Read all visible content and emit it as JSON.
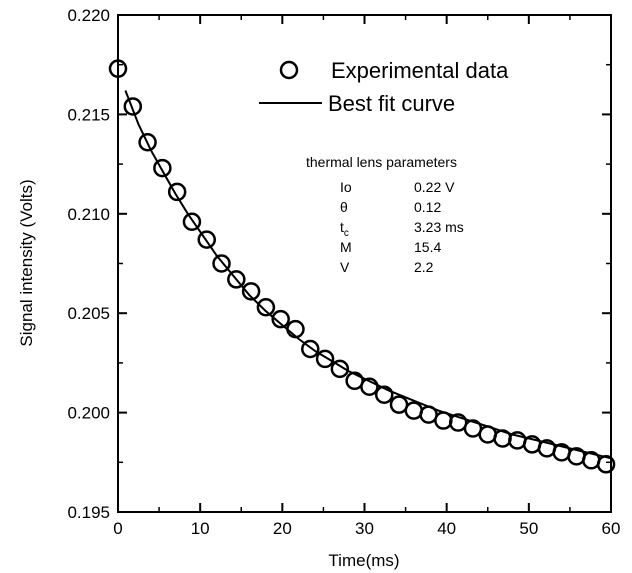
{
  "chart_data": {
    "type": "scatter",
    "xlabel": "Time(ms)",
    "ylabel": "Signal intensity (Volts)",
    "xlim": [
      0,
      60
    ],
    "ylim": [
      0.195,
      0.22
    ],
    "xticks": [
      "0",
      "10",
      "20",
      "30",
      "40",
      "50",
      "60"
    ],
    "yticks": [
      "0.195",
      "0.200",
      "0.205",
      "0.210",
      "0.215",
      "0.220"
    ],
    "grid": false,
    "legend_position": "top-right",
    "series": [
      {
        "name": "Experimental data",
        "kind": "markers",
        "marker": "open-circle",
        "x": [
          0.0,
          1.8,
          3.6,
          5.4,
          7.2,
          9.0,
          10.8,
          12.6,
          14.4,
          16.2,
          18.0,
          19.8,
          21.6,
          23.4,
          25.2,
          27.0,
          28.8,
          30.6,
          32.4,
          34.2,
          36.0,
          37.8,
          39.6,
          41.4,
          43.2,
          45.0,
          46.8,
          48.6,
          50.4,
          52.2,
          54.0,
          55.8,
          57.6,
          59.4
        ],
        "y": [
          0.2173,
          0.2154,
          0.2136,
          0.2123,
          0.2111,
          0.2096,
          0.2087,
          0.2075,
          0.2067,
          0.2061,
          0.2053,
          0.2047,
          0.2042,
          0.2032,
          0.2027,
          0.2022,
          0.2016,
          0.2013,
          0.2009,
          0.2004,
          0.2001,
          0.1999,
          0.1996,
          0.1995,
          0.1992,
          0.1989,
          0.1987,
          0.1986,
          0.1984,
          0.1982,
          0.198,
          0.1978,
          0.1976,
          0.1974
        ]
      },
      {
        "name": "Best fit curve",
        "kind": "line",
        "x": [
          0.9,
          2.5,
          4.0,
          5.5,
          7.0,
          8.5,
          10.0,
          12.0,
          14.0,
          16.0,
          18.0,
          20.0,
          22.0,
          24.0,
          26.0,
          28.0,
          30.0,
          33.0,
          36.0,
          39.0,
          42.0,
          45.0,
          48.0,
          51.0,
          54.0,
          57.0,
          60.0
        ],
        "y": [
          0.2162,
          0.2145,
          0.2132,
          0.2121,
          0.211,
          0.21,
          0.2091,
          0.2079,
          0.2069,
          0.2059,
          0.2051,
          0.2044,
          0.2037,
          0.2031,
          0.2026,
          0.2021,
          0.2017,
          0.2011,
          0.2006,
          0.2001,
          0.1997,
          0.1993,
          0.1989,
          0.1986,
          0.1983,
          0.198,
          0.1977
        ]
      }
    ],
    "parameters": {
      "title": "thermal lens parameters",
      "rows": [
        {
          "symbol": "Io",
          "symbol_sub": "",
          "value": "0.22 V"
        },
        {
          "symbol": "θ",
          "symbol_sub": "",
          "value": "0.12"
        },
        {
          "symbol": "t",
          "symbol_sub": "c",
          "value": "3.23 ms"
        },
        {
          "symbol": "M",
          "symbol_sub": "",
          "value": "15.4"
        },
        {
          "symbol": "V",
          "symbol_sub": "",
          "value": "2.2"
        }
      ]
    }
  }
}
